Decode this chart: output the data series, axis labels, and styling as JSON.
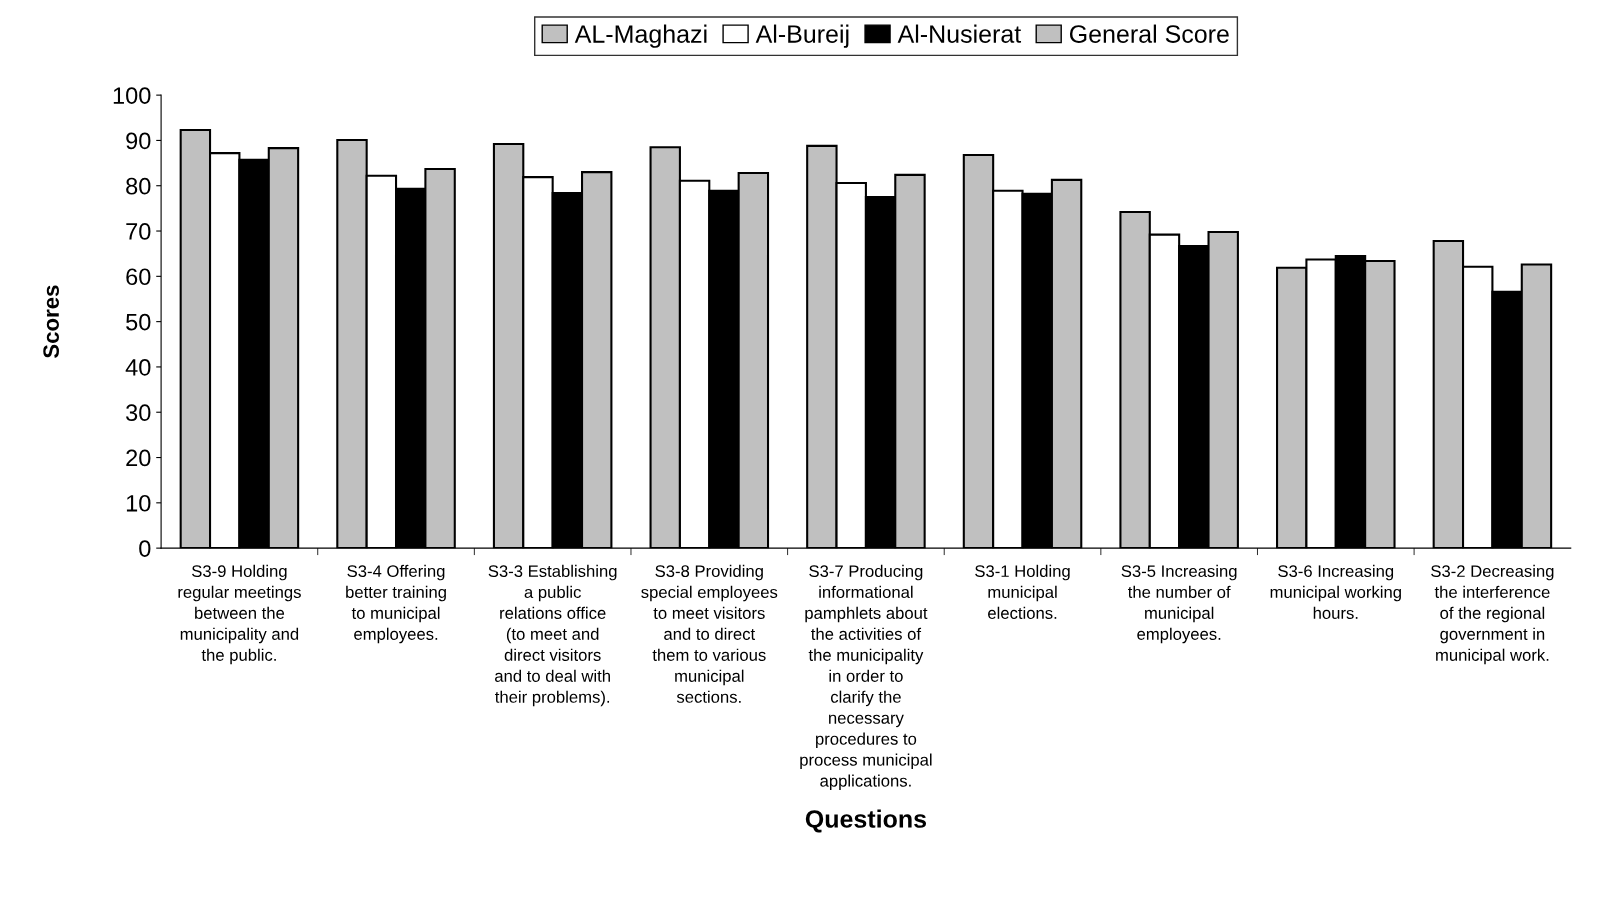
{
  "chart_data": {
    "type": "bar",
    "xlabel": "Questions",
    "ylabel": "Scores",
    "categories": [
      "S3-9 Holding regular meetings between the municipality and the public.",
      "S3-4 Offering better training to municipal employees.",
      "S3-3 Establishing a public relations office (to meet and direct visitors and to deal with their problems).",
      "S3-8 Providing special employees to meet visitors and to direct them to various municipal sections.",
      "S3-7 Producing informational pamphlets about the activities of the municipality in order to clarify the necessary procedures to process municipal applications.",
      "S3-1 Holding municipal elections.",
      "S3-5 Increasing the number of municipal employees.",
      "S3-6 Increasing municipal working hours.",
      "S3-2 Decreasing the interference of the regional government in municipal work."
    ],
    "series": [
      {
        "name": "AL-Maghazi",
        "color": "#c0c0c0",
        "values": [
          92.3,
          90.1,
          89.2,
          88.5,
          88.8,
          86.8,
          74.2,
          61.9,
          67.8
        ]
      },
      {
        "name": "Al-Bureij",
        "color": "#ffffff",
        "values": [
          87.2,
          82.2,
          81.9,
          81.1,
          80.6,
          78.9,
          69.2,
          63.7,
          62.1
        ]
      },
      {
        "name": "Al-Nusierat",
        "color": "#000000",
        "values": [
          85.7,
          79.3,
          78.4,
          78.9,
          77.5,
          78.2,
          66.7,
          64.5,
          56.6
        ]
      },
      {
        "name": "General Score",
        "color": "#c0c0c0",
        "values": [
          88.3,
          83.7,
          83.0,
          82.8,
          82.4,
          81.3,
          69.8,
          63.4,
          62.6
        ]
      }
    ],
    "ylim": [
      0,
      100
    ],
    "yticks": [
      0,
      10,
      20,
      30,
      40,
      50,
      60,
      70,
      80,
      90,
      100
    ],
    "grid": false,
    "legend": "top"
  }
}
